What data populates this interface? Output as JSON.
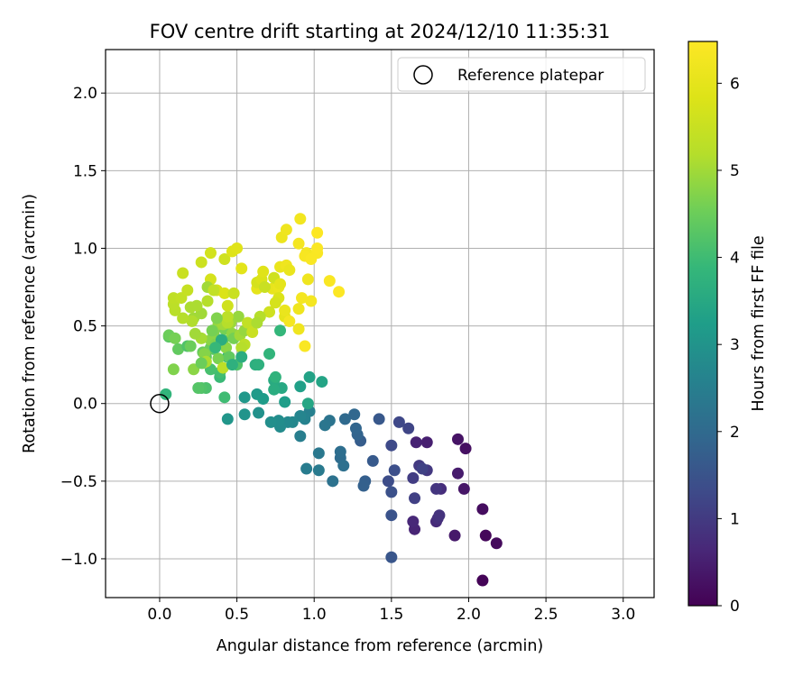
{
  "chart_data": {
    "type": "scatter",
    "title": "FOV centre drift starting at 2024/12/10 11:35:31",
    "xlabel": "Angular distance from reference (arcmin)",
    "ylabel": "Rotation from reference (arcmin)",
    "xlim": [
      -0.35,
      3.2
    ],
    "ylim": [
      -1.25,
      2.28
    ],
    "xticks": [
      0.0,
      0.5,
      1.0,
      1.5,
      2.0,
      2.5,
      3.0
    ],
    "xtick_labels": [
      "0.0",
      "0.5",
      "1.0",
      "1.5",
      "2.0",
      "2.5",
      "3.0"
    ],
    "yticks": [
      -1.0,
      -0.5,
      0.0,
      0.5,
      1.0,
      1.5,
      2.0
    ],
    "ytick_labels": [
      "−1.0",
      "−0.5",
      "0.0",
      "0.5",
      "1.0",
      "1.5",
      "2.0"
    ],
    "grid": true,
    "legend": {
      "position": "top-right",
      "entries": [
        "Reference platepar"
      ]
    },
    "reference_point": {
      "x": 0.0,
      "y": 0.0,
      "label": "Reference platepar"
    },
    "colorbar": {
      "label": "Hours from first FF file",
      "range": [
        0,
        6.48
      ],
      "ticks": [
        0,
        1,
        2,
        3,
        4,
        5,
        6
      ],
      "tick_labels": [
        "0",
        "1",
        "2",
        "3",
        "4",
        "5",
        "6"
      ],
      "colormap": "viridis"
    },
    "series": [
      {
        "points": [
          [
            2.09,
            -1.14,
            0.05
          ],
          [
            2.11,
            -0.85,
            0.1
          ],
          [
            2.18,
            -0.9,
            0.15
          ],
          [
            2.09,
            -0.68,
            0.2
          ],
          [
            1.98,
            -0.29,
            0.25
          ],
          [
            1.93,
            -0.23,
            0.3
          ],
          [
            1.97,
            -0.55,
            0.35
          ],
          [
            1.91,
            -0.85,
            0.4
          ],
          [
            1.93,
            -0.45,
            0.45
          ],
          [
            1.73,
            -0.25,
            0.5
          ],
          [
            1.66,
            -0.25,
            0.55
          ],
          [
            1.65,
            -0.81,
            0.6
          ],
          [
            1.64,
            -0.76,
            0.65
          ],
          [
            1.79,
            -0.76,
            0.7
          ],
          [
            1.82,
            -0.55,
            0.75
          ],
          [
            1.8,
            -0.74,
            0.8
          ],
          [
            1.81,
            -0.72,
            0.85
          ],
          [
            1.79,
            -0.55,
            0.9
          ],
          [
            1.73,
            -0.43,
            0.95
          ],
          [
            1.68,
            -0.4,
            1.0
          ],
          [
            1.64,
            -0.48,
            1.05
          ],
          [
            1.65,
            -0.61,
            1.1
          ],
          [
            1.7,
            -0.42,
            1.15
          ],
          [
            1.61,
            -0.16,
            1.2
          ],
          [
            1.55,
            -0.12,
            1.25
          ],
          [
            1.5,
            -0.27,
            1.3
          ],
          [
            1.48,
            -0.5,
            1.35
          ],
          [
            1.52,
            -0.43,
            1.4
          ],
          [
            1.5,
            -0.57,
            1.45
          ],
          [
            1.5,
            -0.72,
            1.5
          ],
          [
            1.5,
            -0.99,
            1.55
          ],
          [
            1.42,
            -0.1,
            1.6
          ],
          [
            1.38,
            -0.37,
            1.65
          ],
          [
            1.3,
            -0.24,
            1.7
          ],
          [
            1.33,
            -0.5,
            1.75
          ],
          [
            1.32,
            -0.53,
            1.8
          ],
          [
            1.28,
            -0.2,
            1.85
          ],
          [
            1.27,
            -0.16,
            1.9
          ],
          [
            1.26,
            -0.07,
            1.95
          ],
          [
            1.2,
            -0.1,
            2.0
          ],
          [
            1.17,
            -0.35,
            2.05
          ],
          [
            1.17,
            -0.31,
            2.1
          ],
          [
            1.19,
            -0.4,
            2.15
          ],
          [
            1.12,
            -0.5,
            2.2
          ],
          [
            1.1,
            -0.11,
            2.25
          ],
          [
            1.07,
            -0.14,
            2.3
          ],
          [
            1.03,
            -0.32,
            2.35
          ],
          [
            1.03,
            -0.43,
            2.4
          ],
          [
            0.95,
            -0.42,
            2.45
          ],
          [
            0.91,
            -0.21,
            2.5
          ],
          [
            0.97,
            -0.05,
            2.55
          ],
          [
            0.94,
            -0.1,
            2.6
          ],
          [
            0.91,
            -0.08,
            2.65
          ],
          [
            0.86,
            -0.12,
            2.7
          ],
          [
            0.83,
            -0.12,
            2.75
          ],
          [
            0.78,
            -0.15,
            2.8
          ],
          [
            0.77,
            -0.11,
            2.85
          ],
          [
            0.72,
            -0.12,
            2.9
          ],
          [
            0.64,
            -0.06,
            2.95
          ],
          [
            0.55,
            -0.07,
            3.0
          ],
          [
            0.44,
            -0.1,
            3.05
          ],
          [
            0.55,
            0.04,
            3.1
          ],
          [
            0.63,
            0.06,
            3.15
          ],
          [
            0.67,
            0.03,
            3.2
          ],
          [
            0.81,
            0.01,
            3.25
          ],
          [
            0.91,
            0.11,
            3.3
          ],
          [
            0.97,
            0.17,
            3.35
          ],
          [
            1.05,
            0.14,
            3.4
          ],
          [
            0.96,
            0.0,
            3.45
          ],
          [
            0.79,
            0.1,
            3.5
          ],
          [
            0.74,
            0.15,
            3.55
          ],
          [
            0.74,
            0.09,
            3.6
          ],
          [
            0.62,
            0.25,
            3.65
          ],
          [
            0.64,
            0.25,
            3.7
          ],
          [
            0.75,
            0.17,
            3.75
          ],
          [
            0.71,
            0.32,
            3.8
          ],
          [
            0.78,
            0.47,
            3.85
          ],
          [
            0.44,
            0.3,
            3.9
          ],
          [
            0.39,
            0.17,
            3.95
          ],
          [
            0.42,
            0.04,
            4.0
          ],
          [
            0.39,
            0.2,
            4.05
          ],
          [
            0.33,
            0.22,
            4.1
          ],
          [
            0.3,
            0.1,
            4.15
          ],
          [
            0.27,
            0.1,
            4.2
          ],
          [
            0.25,
            0.1,
            4.25
          ],
          [
            0.35,
            0.35,
            4.3
          ],
          [
            0.3,
            0.3,
            4.35
          ],
          [
            0.41,
            0.41,
            4.4
          ],
          [
            0.28,
            0.33,
            4.45
          ],
          [
            0.33,
            0.36,
            4.5
          ],
          [
            0.39,
            0.41,
            4.55
          ],
          [
            0.42,
            0.48,
            4.6
          ],
          [
            0.38,
            0.29,
            4.65
          ],
          [
            0.35,
            0.46,
            4.7
          ],
          [
            0.29,
            0.32,
            4.75
          ],
          [
            0.33,
            0.41,
            4.8
          ],
          [
            0.47,
            0.45,
            4.85
          ],
          [
            0.51,
            0.56,
            4.9
          ],
          [
            0.46,
            0.52,
            4.95
          ],
          [
            0.22,
            0.55,
            5.0
          ],
          [
            0.27,
            0.42,
            5.05
          ],
          [
            0.2,
            0.62,
            5.1
          ],
          [
            0.21,
            0.53,
            5.15
          ],
          [
            0.15,
            0.55,
            5.2
          ],
          [
            0.1,
            0.6,
            5.25
          ],
          [
            0.09,
            0.64,
            5.3
          ],
          [
            0.09,
            0.68,
            5.35
          ],
          [
            0.14,
            0.68,
            5.4
          ],
          [
            0.18,
            0.73,
            5.45
          ],
          [
            0.15,
            0.84,
            5.5
          ],
          [
            0.27,
            0.91,
            5.55
          ],
          [
            0.42,
            0.93,
            5.6
          ],
          [
            0.33,
            0.97,
            5.65
          ],
          [
            0.33,
            0.8,
            5.7
          ],
          [
            0.37,
            0.73,
            5.75
          ],
          [
            0.42,
            0.71,
            5.8
          ],
          [
            0.47,
            0.98,
            5.85
          ],
          [
            0.5,
            1.0,
            5.9
          ],
          [
            0.53,
            0.87,
            5.95
          ],
          [
            0.63,
            0.74,
            6.0
          ],
          [
            0.73,
            0.74,
            6.05
          ],
          [
            0.77,
            0.75,
            6.1
          ],
          [
            0.79,
            1.07,
            6.15
          ],
          [
            0.82,
            1.12,
            6.2
          ],
          [
            0.91,
            1.19,
            6.25
          ],
          [
            0.95,
            0.97,
            6.3
          ],
          [
            0.94,
            0.95,
            6.35
          ],
          [
            1.02,
            0.97,
            6.4
          ],
          [
            1.02,
            1.0,
            6.42
          ],
          [
            1.16,
            0.72,
            6.45
          ],
          [
            0.04,
            0.06,
            3.8
          ],
          [
            0.06,
            0.43,
            4.3
          ],
          [
            0.06,
            0.44,
            4.5
          ],
          [
            0.1,
            0.42,
            4.6
          ],
          [
            0.09,
            0.22,
            4.7
          ],
          [
            0.12,
            0.35,
            4.4
          ],
          [
            0.18,
            0.37,
            4.2
          ],
          [
            0.2,
            0.37,
            4.5
          ],
          [
            0.22,
            0.22,
            4.8
          ],
          [
            0.23,
            0.45,
            5.0
          ],
          [
            0.28,
            0.26,
            4.9
          ],
          [
            0.3,
            0.27,
            5.1
          ],
          [
            0.36,
            0.38,
            4.7
          ],
          [
            0.38,
            0.51,
            4.9
          ],
          [
            0.41,
            0.51,
            5.0
          ],
          [
            0.44,
            0.52,
            5.2
          ],
          [
            0.41,
            0.23,
            5.3
          ],
          [
            0.43,
            0.36,
            4.8
          ],
          [
            0.48,
            0.42,
            4.6
          ],
          [
            0.52,
            0.44,
            5.0
          ],
          [
            0.55,
            0.47,
            4.9
          ],
          [
            0.57,
            0.52,
            5.4
          ],
          [
            0.6,
            0.46,
            5.5
          ],
          [
            0.55,
            0.38,
            5.3
          ],
          [
            0.53,
            0.36,
            5.2
          ],
          [
            0.44,
            0.56,
            5.3
          ],
          [
            0.31,
            0.66,
            5.2
          ],
          [
            0.27,
            0.58,
            5.0
          ],
          [
            0.24,
            0.63,
            5.1
          ],
          [
            0.31,
            0.75,
            5.0
          ],
          [
            0.35,
            0.73,
            5.4
          ],
          [
            0.44,
            0.63,
            5.6
          ],
          [
            0.48,
            0.71,
            5.5
          ],
          [
            0.63,
            0.78,
            5.7
          ],
          [
            0.66,
            0.8,
            5.8
          ],
          [
            0.67,
            0.85,
            5.9
          ],
          [
            0.74,
            0.81,
            5.6
          ],
          [
            0.78,
            0.77,
            6.0
          ],
          [
            0.78,
            0.88,
            6.1
          ],
          [
            0.82,
            0.89,
            6.2
          ],
          [
            0.84,
            0.86,
            6.1
          ],
          [
            0.77,
            0.68,
            5.8
          ],
          [
            0.81,
            0.56,
            6.0
          ],
          [
            0.81,
            0.6,
            6.1
          ],
          [
            0.84,
            0.53,
            6.3
          ],
          [
            0.9,
            0.48,
            6.2
          ],
          [
            0.94,
            0.37,
            6.4
          ],
          [
            0.92,
            0.68,
            6.3
          ],
          [
            0.9,
            0.61,
            6.2
          ],
          [
            0.98,
            0.66,
            6.3
          ],
          [
            0.96,
            0.8,
            6.2
          ],
          [
            0.98,
            0.93,
            6.4
          ],
          [
            1.02,
            1.1,
            6.45
          ],
          [
            0.9,
            1.03,
            6.3
          ],
          [
            1.1,
            0.79,
            6.4
          ],
          [
            0.75,
            0.65,
            5.7
          ],
          [
            0.71,
            0.59,
            5.6
          ],
          [
            0.65,
            0.56,
            5.2
          ],
          [
            0.63,
            0.52,
            5.1
          ],
          [
            0.68,
            0.75,
            5.5
          ],
          [
            0.5,
            0.25,
            4.2
          ],
          [
            0.45,
            0.3,
            4.4
          ],
          [
            0.27,
            0.26,
            4.5
          ],
          [
            0.34,
            0.47,
            4.6
          ],
          [
            0.37,
            0.55,
            4.7
          ],
          [
            0.4,
            0.41,
            3.6
          ],
          [
            0.36,
            0.36,
            3.9
          ],
          [
            0.47,
            0.25,
            3.7
          ],
          [
            0.53,
            0.3,
            3.6
          ]
        ]
      }
    ]
  }
}
